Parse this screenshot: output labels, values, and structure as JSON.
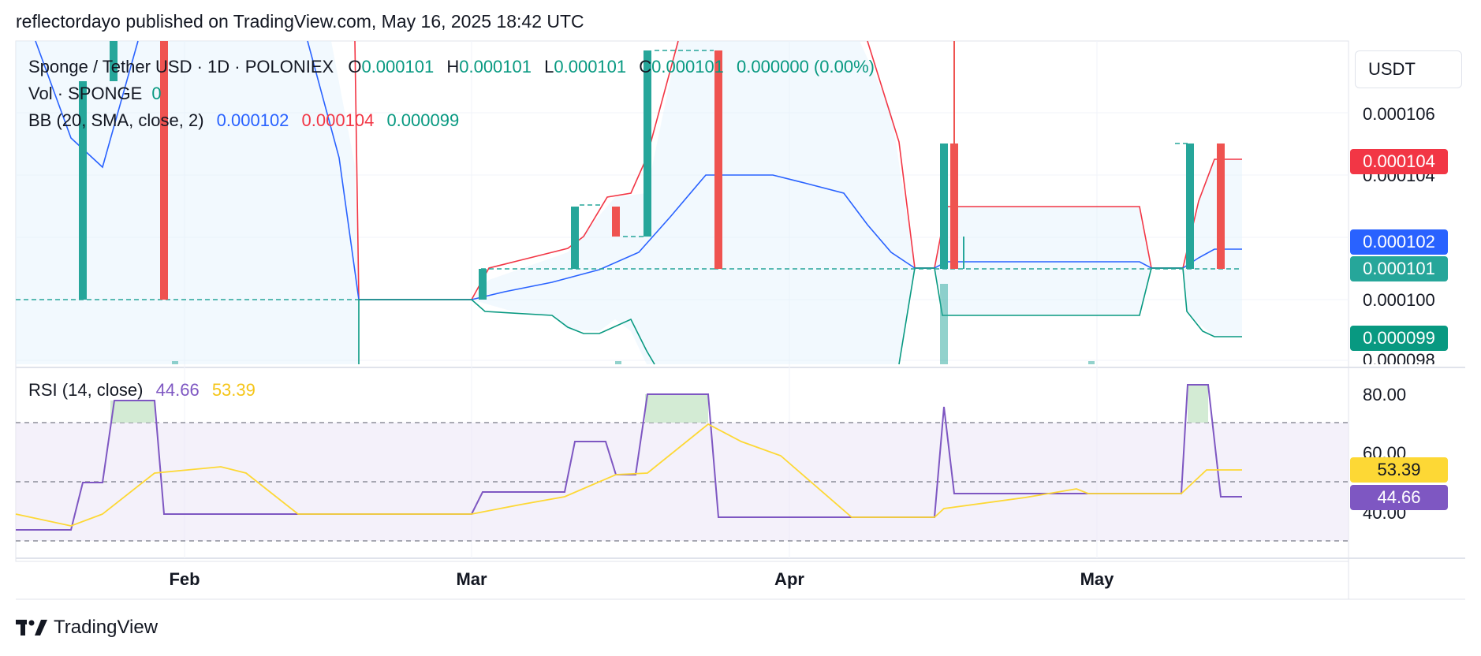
{
  "header": {
    "attribution": "reflectordayo published on TradingView.com, May 16, 2025 18:42 UTC"
  },
  "legend": {
    "symbol": "Sponge / Tether USD · 1D · POLONIEX",
    "o_label": "O",
    "o_value": "0.000101",
    "h_label": "H",
    "h_value": "0.000101",
    "l_label": "L",
    "l_value": "0.000101",
    "c_label": "C",
    "c_value": "0.000101",
    "change": "0.000000 (0.00%)",
    "vol_label": "Vol · SPONGE",
    "vol_value": "0",
    "bb_label": "BB (20, SMA, close, 2)",
    "bb_basis": "0.000102",
    "bb_upper": "0.000104",
    "bb_lower": "0.000099",
    "rsi_label": "RSI (14, close)",
    "rsi_value": "44.66",
    "rsi_ma_value": "53.39"
  },
  "currency_button": "USDT",
  "price_axis": {
    "ticks": [
      "0.000106",
      "0.000104",
      "0.000100",
      "0.000098"
    ]
  },
  "price_badges": {
    "upper": "0.000104",
    "basis": "0.000102",
    "close": "0.000101",
    "lower": "0.000099"
  },
  "rsi_axis": {
    "ticks": [
      "80.00",
      "60.00",
      "40.00"
    ]
  },
  "rsi_badges": {
    "ma": "53.39",
    "rsi": "44.66"
  },
  "time_axis": {
    "ticks": [
      "Feb",
      "Mar",
      "Apr",
      "May"
    ]
  },
  "footer": {
    "brand": "TradingView"
  },
  "colors": {
    "up": "#26a69a",
    "down": "#ef5350",
    "bb_basis": "#2962ff",
    "bb_upper": "#f23645",
    "bb_lower": "#089981",
    "rsi": "#7e57c2",
    "rsi_ma": "#fdd835"
  },
  "chart_data": [
    {
      "type": "candlestick",
      "title": "Sponge / Tether USD · 1D · POLONIEX",
      "y_unit": "USDT",
      "ylim": [
        9.8e-05,
        0.000107
      ],
      "candles": [
        {
          "date": "2025-01-20",
          "open": 0.0001,
          "close": 0.000107,
          "dir": "up"
        },
        {
          "date": "2025-01-24",
          "open": 0.000106,
          "close": 0.000107,
          "dir": "up"
        },
        {
          "date": "2025-01-31",
          "open": 0.000107,
          "close": 0.0001,
          "dir": "down"
        },
        {
          "date": "2025-03-01",
          "open": 0.0001,
          "close": 0.000101,
          "dir": "up"
        },
        {
          "date": "2025-03-10",
          "open": 0.000101,
          "close": 0.000103,
          "dir": "up"
        },
        {
          "date": "2025-03-14",
          "open": 0.000103,
          "close": 0.000102,
          "dir": "down"
        },
        {
          "date": "2025-03-17",
          "open": 0.000102,
          "close": 0.000107,
          "dir": "up"
        },
        {
          "date": "2025-03-24",
          "open": 0.000107,
          "close": 0.000101,
          "dir": "down"
        },
        {
          "date": "2025-04-15",
          "open": 0.000101,
          "close": 0.000104,
          "dir": "up"
        },
        {
          "date": "2025-04-16",
          "open": 0.000104,
          "close": 0.000101,
          "dir": "down"
        },
        {
          "date": "2025-05-09",
          "open": 0.000101,
          "close": 0.000104,
          "dir": "up"
        },
        {
          "date": "2025-05-12",
          "open": 0.000104,
          "close": 0.000101,
          "dir": "down"
        }
      ],
      "bollinger": {
        "basis": [
          0.000102,
          0.0001,
          0.0001,
          0.000101,
          0.000101,
          0.000104,
          0.000104,
          0.000101,
          0.000101,
          0.000101,
          0.000102
        ],
        "upper": [
          0.000104
        ],
        "lower": [
          9.9e-05
        ]
      }
    },
    {
      "type": "line",
      "title": "RSI (14, close)",
      "ylim": [
        30,
        85
      ],
      "reference_levels": [
        70,
        50,
        30
      ],
      "series": [
        {
          "name": "RSI",
          "values": [
            35,
            35,
            50,
            50,
            77,
            77,
            40,
            40,
            40,
            40,
            45,
            45,
            66,
            66,
            53,
            78,
            78,
            39,
            39,
            39,
            39,
            40,
            40,
            76,
            45,
            45,
            45,
            45,
            80,
            80,
            44.66
          ]
        },
        {
          "name": "RSI MA",
          "values": [
            40,
            36,
            38,
            45,
            54,
            55,
            53,
            40,
            40,
            40,
            40,
            42,
            46,
            52,
            58,
            70,
            62,
            55,
            40,
            40,
            43,
            45,
            47,
            47,
            47,
            53.39
          ]
        }
      ]
    }
  ]
}
